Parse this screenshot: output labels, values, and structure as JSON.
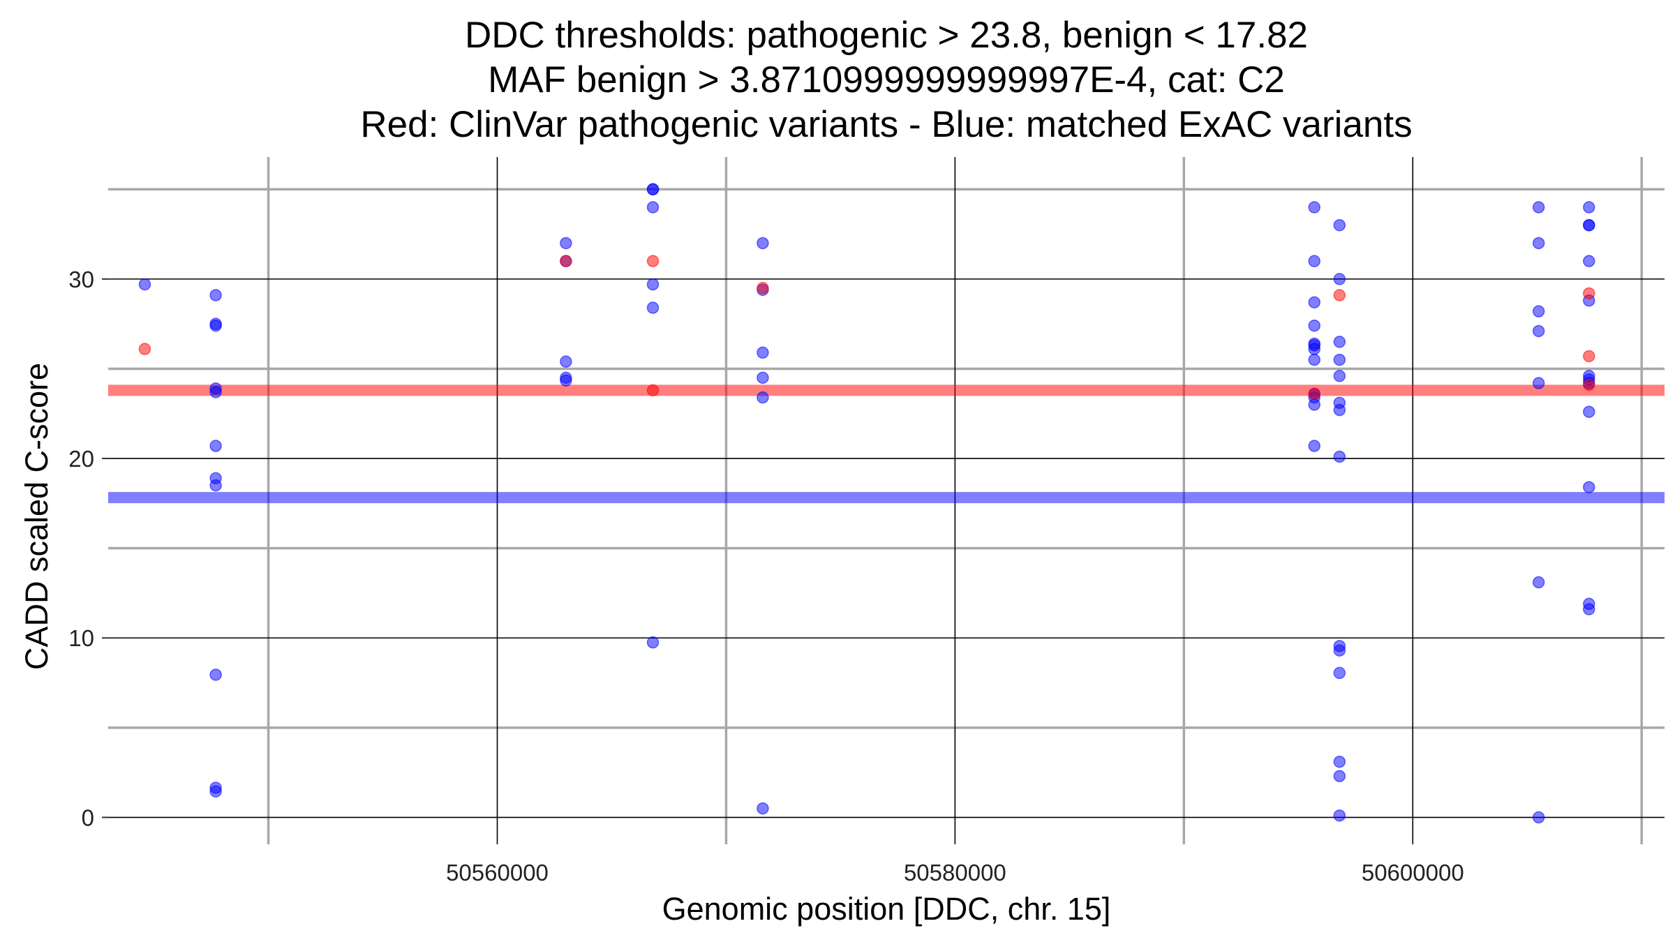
{
  "chart_data": {
    "type": "scatter",
    "title_lines": [
      "DDC thresholds: pathogenic > 23.8, benign < 17.82",
      "MAF benign > 3.8710999999999997E-4, cat: C2",
      "Red: ClinVar pathogenic variants - Blue: matched ExAC variants"
    ],
    "xlabel": "Genomic position [DDC, chr. 15]",
    "ylabel": "CADD scaled C-score",
    "xlim": [
      50543000,
      50611000
    ],
    "ylim": [
      -1.5,
      36.8
    ],
    "x_major_ticks": [
      50560000,
      50580000,
      50600000
    ],
    "x_tick_labels": [
      "50560000",
      "50580000",
      "50600000"
    ],
    "x_minor_ticks": [
      50550000,
      50570000,
      50590000,
      50610000
    ],
    "y_major_ticks": [
      0,
      10,
      20,
      30
    ],
    "y_tick_labels": [
      "0",
      "10",
      "20",
      "30"
    ],
    "y_minor_ticks": [
      5,
      15,
      25,
      35
    ],
    "grid": true,
    "thresholds": [
      {
        "value": 23.8,
        "color": "#ff0000"
      },
      {
        "value": 17.82,
        "color": "#0000ff"
      }
    ],
    "series": [
      {
        "color": "#ff0000",
        "points": [
          [
            50544600,
            26.1
          ],
          [
            50563000,
            31.0
          ],
          [
            50566800,
            31.0
          ],
          [
            50566800,
            23.8
          ],
          [
            50571600,
            29.5
          ],
          [
            50595700,
            23.6
          ],
          [
            50596800,
            29.1
          ],
          [
            50607700,
            29.2
          ],
          [
            50607700,
            25.7
          ],
          [
            50607700,
            24.1
          ]
        ]
      },
      {
        "color": "#0000ff",
        "points": [
          [
            50544600,
            29.7
          ],
          [
            50547700,
            29.1
          ],
          [
            50547700,
            27.5
          ],
          [
            50547700,
            27.4
          ],
          [
            50547700,
            23.9
          ],
          [
            50547700,
            23.7
          ],
          [
            50547700,
            20.7
          ],
          [
            50547700,
            18.9
          ],
          [
            50547700,
            18.5
          ],
          [
            50547700,
            7.95
          ],
          [
            50547700,
            1.65
          ],
          [
            50547700,
            1.45
          ],
          [
            50563000,
            32.0
          ],
          [
            50563000,
            31.0
          ],
          [
            50563000,
            25.4
          ],
          [
            50563000,
            24.5
          ],
          [
            50563000,
            24.35
          ],
          [
            50566800,
            35.0
          ],
          [
            50566800,
            35.0
          ],
          [
            50566800,
            34.0
          ],
          [
            50566800,
            29.7
          ],
          [
            50566800,
            28.4
          ],
          [
            50566800,
            9.75
          ],
          [
            50571600,
            32.0
          ],
          [
            50571600,
            29.4
          ],
          [
            50571600,
            25.9
          ],
          [
            50571600,
            24.5
          ],
          [
            50571600,
            23.4
          ],
          [
            50571600,
            0.5
          ],
          [
            50595700,
            34.0
          ],
          [
            50595700,
            31.0
          ],
          [
            50595700,
            28.7
          ],
          [
            50595700,
            27.4
          ],
          [
            50595700,
            26.4
          ],
          [
            50595700,
            26.3
          ],
          [
            50595700,
            26.1
          ],
          [
            50595700,
            25.5
          ],
          [
            50595700,
            23.6
          ],
          [
            50595700,
            23.4
          ],
          [
            50595700,
            23.0
          ],
          [
            50595700,
            20.7
          ],
          [
            50596800,
            33.0
          ],
          [
            50596800,
            30.0
          ],
          [
            50596800,
            26.5
          ],
          [
            50596800,
            25.5
          ],
          [
            50596800,
            24.6
          ],
          [
            50596800,
            23.1
          ],
          [
            50596800,
            22.7
          ],
          [
            50596800,
            20.1
          ],
          [
            50596800,
            9.55
          ],
          [
            50596800,
            9.3
          ],
          [
            50596800,
            8.05
          ],
          [
            50596800,
            3.1
          ],
          [
            50596800,
            2.3
          ],
          [
            50596800,
            0.1
          ],
          [
            50605500,
            34.0
          ],
          [
            50605500,
            32.0
          ],
          [
            50605500,
            28.2
          ],
          [
            50605500,
            27.1
          ],
          [
            50605500,
            24.2
          ],
          [
            50605500,
            13.1
          ],
          [
            50605500,
            0.0
          ],
          [
            50607700,
            34.0
          ],
          [
            50607700,
            33.0
          ],
          [
            50607700,
            33.0
          ],
          [
            50607700,
            31.0
          ],
          [
            50607700,
            28.8
          ],
          [
            50607700,
            24.6
          ],
          [
            50607700,
            24.4
          ],
          [
            50607700,
            24.2
          ],
          [
            50607700,
            22.6
          ],
          [
            50607700,
            18.4
          ],
          [
            50607700,
            11.9
          ],
          [
            50607700,
            11.6
          ]
        ]
      }
    ]
  }
}
